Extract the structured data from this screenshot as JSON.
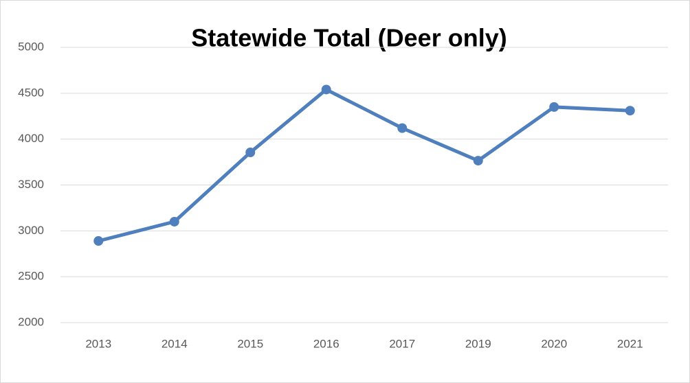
{
  "chart_data": {
    "type": "line",
    "title": "Statewide Total (Deer only)",
    "categories": [
      "2013",
      "2014",
      "2015",
      "2016",
      "2017",
      "2019",
      "2020",
      "2021"
    ],
    "series": [
      {
        "name": "Statewide Total",
        "color": "#4f7fbc",
        "values": [
          2890,
          3100,
          3855,
          4540,
          4120,
          3765,
          4350,
          4310
        ]
      }
    ],
    "ylim": [
      2000,
      5000
    ],
    "yticks": [
      2000,
      2500,
      3000,
      3500,
      4000,
      4500,
      5000
    ],
    "grid": true
  }
}
